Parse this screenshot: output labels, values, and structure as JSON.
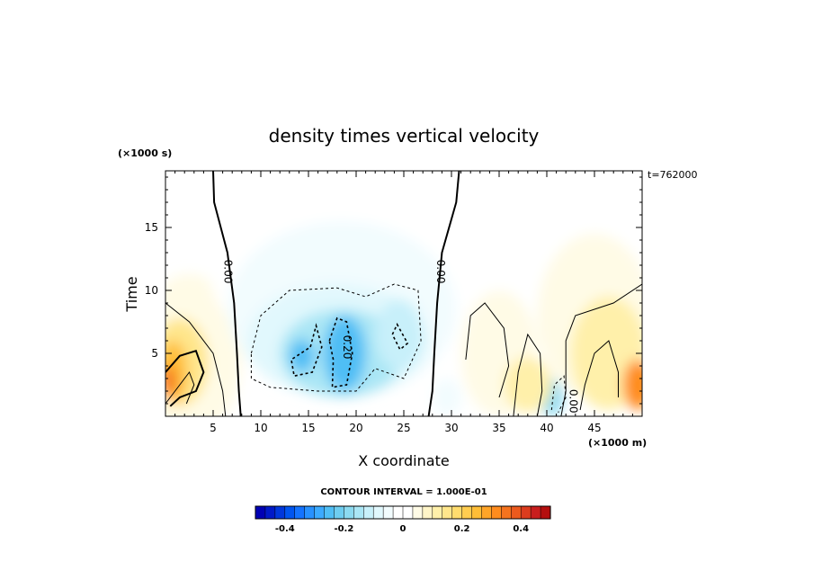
{
  "chart_data": {
    "type": "heatmap",
    "title": "density times vertical velocity",
    "xlabel": "X coordinate",
    "ylabel": "Time",
    "x_unit_label": "(×1000 m)",
    "y_unit_label": "(×1000 s)",
    "timestamp": "t=762000",
    "x_range": [
      0,
      50
    ],
    "y_range": [
      0,
      19.5
    ],
    "x_ticks": [
      5,
      10,
      15,
      20,
      25,
      30,
      35,
      40,
      45
    ],
    "y_ticks": [
      5,
      10,
      15
    ],
    "contour_interval_text": "CONTOUR INTERVAL = 1.000E-01",
    "contour_labels": [
      "0.00",
      "0.00",
      "0.20",
      "0.00"
    ],
    "colorbar": {
      "range": [
        -0.5,
        0.5
      ],
      "ticks": [
        -0.4,
        -0.2,
        0,
        0.2,
        0.4
      ],
      "tick_labels": [
        "-0.4",
        "-0.2",
        "0",
        "0.2",
        "0.4"
      ],
      "colors": [
        "#0000b4",
        "#0019c8",
        "#0037dc",
        "#0055f0",
        "#1473ff",
        "#2891ff",
        "#3caaff",
        "#50bef5",
        "#6ecdf0",
        "#8cdaf0",
        "#aae6f5",
        "#c8f0fa",
        "#e1f8fd",
        "#f2fcfe",
        "#ffffff",
        "#ffffff",
        "#fffbe6",
        "#fff5c8",
        "#fff0aa",
        "#ffe68c",
        "#ffdc6e",
        "#ffcd50",
        "#ffbe37",
        "#ffa528",
        "#ff8c1e",
        "#f5731e",
        "#eb5a1e",
        "#dc3c1e",
        "#c81e1e",
        "#b40f0f"
      ]
    },
    "regions": [
      {
        "x": 2.5,
        "y": 4.8,
        "rx": 5.5,
        "ry": 6.5,
        "value": 0.05
      },
      {
        "x": 1.5,
        "y": 4.3,
        "rx": 3.0,
        "ry": 3.5,
        "value": 0.15
      },
      {
        "x": 0.8,
        "y": 3.5,
        "rx": 1.5,
        "ry": 2.5,
        "value": 0.25
      },
      {
        "x": 0.3,
        "y": 2.8,
        "rx": 0.8,
        "ry": 1.2,
        "value": 0.35
      },
      {
        "x": 18.5,
        "y": 12.0,
        "rx": 14.0,
        "ry": 8.0,
        "value": -0.01
      },
      {
        "x": 18.5,
        "y": 8.5,
        "rx": 12.0,
        "ry": 7.0,
        "value": -0.05
      },
      {
        "x": 18.0,
        "y": 6.0,
        "rx": 9.5,
        "ry": 4.5,
        "value": -0.1
      },
      {
        "x": 18.5,
        "y": 5.0,
        "rx": 6.5,
        "ry": 3.5,
        "value": -0.15
      },
      {
        "x": 18.8,
        "y": 5.0,
        "rx": 2.2,
        "ry": 3.0,
        "value": -0.25
      },
      {
        "x": 14.3,
        "y": 4.8,
        "rx": 1.3,
        "ry": 1.3,
        "value": -0.25
      },
      {
        "x": 24.5,
        "y": 6.5,
        "rx": 2.5,
        "ry": 2.8,
        "value": -0.12
      },
      {
        "x": 40.5,
        "y": 1.5,
        "rx": 1.2,
        "ry": 1.5,
        "value": -0.2
      },
      {
        "x": 29.5,
        "y": 1.5,
        "rx": 1.5,
        "ry": 1.5,
        "value": -0.05
      },
      {
        "x": 41.0,
        "y": 10.0,
        "rx": 10.5,
        "ry": 6.5,
        "value": 0.03
      },
      {
        "x": 45.0,
        "y": 8.0,
        "rx": 6.0,
        "ry": 6.5,
        "value": 0.06
      },
      {
        "x": 46.5,
        "y": 5.0,
        "rx": 4.0,
        "ry": 4.5,
        "value": 0.1
      },
      {
        "x": 49.5,
        "y": 2.5,
        "rx": 1.5,
        "ry": 2.0,
        "value": 0.3
      },
      {
        "x": 35.0,
        "y": 5.0,
        "rx": 4.0,
        "ry": 5.0,
        "value": 0.05
      },
      {
        "x": 38.0,
        "y": 2.5,
        "rx": 2.5,
        "ry": 2.2,
        "value": 0.1
      }
    ]
  }
}
